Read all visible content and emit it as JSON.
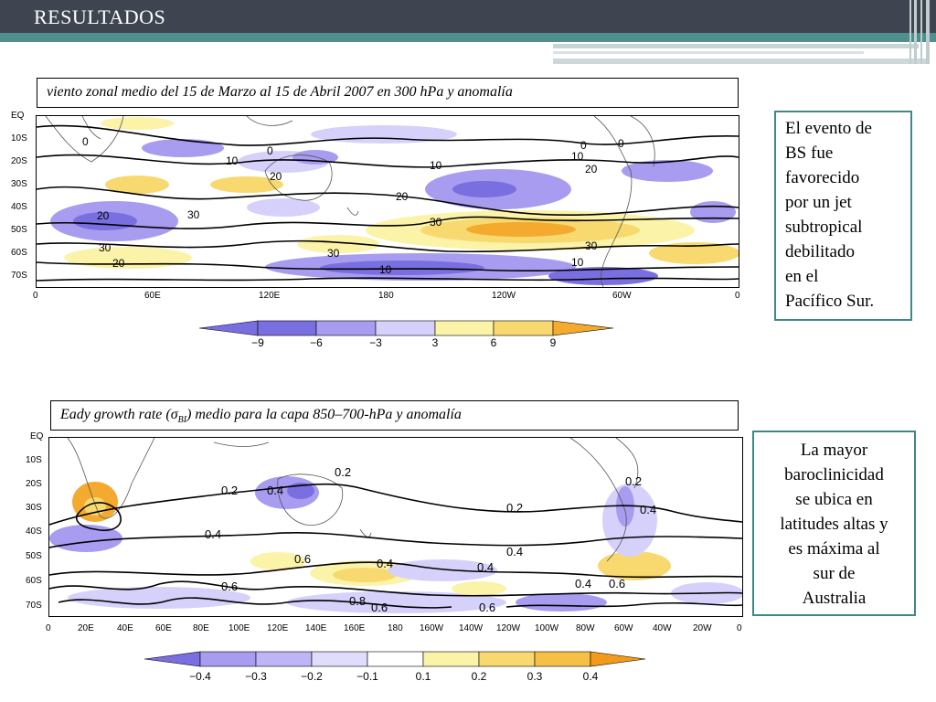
{
  "header": {
    "title": "RESULTADOS"
  },
  "panel_top": {
    "caption": "viento zonal medio del 15 de Marzo al 15 de Abril 2007 en 300 hPa y anomalía",
    "lat_labels": [
      "EQ",
      "10S",
      "20S",
      "30S",
      "40S",
      "50S",
      "60S",
      "70S"
    ],
    "lon_labels": [
      "0",
      "60E",
      "120E",
      "180",
      "120W",
      "60W",
      "0"
    ],
    "contour_labels": [
      "0",
      "0",
      "0",
      "0",
      "10",
      "10",
      "10",
      "10",
      "20",
      "20",
      "20",
      "20",
      "20",
      "30",
      "30",
      "30",
      "30",
      "30",
      "10"
    ],
    "colorbar_labels": [
      "−9",
      "−6",
      "−3",
      "3",
      "6",
      "9"
    ]
  },
  "panel_bottom": {
    "caption_prefix": "Eady growth rate (",
    "caption_sigma": "σ",
    "caption_sub": "BI",
    "caption_suffix": ")  medio para la capa 850–700-hPa y anomalía",
    "lat_labels": [
      "EQ",
      "10S",
      "20S",
      "30S",
      "40S",
      "50S",
      "60S",
      "70S"
    ],
    "lon_labels": [
      "0",
      "20E",
      "40E",
      "60E",
      "80E",
      "100E",
      "120E",
      "140E",
      "160E",
      "180",
      "160W",
      "140W",
      "120W",
      "100W",
      "80W",
      "60W",
      "40W",
      "20W",
      "0"
    ],
    "contour_labels": [
      "0.2",
      "0.2",
      "0.2",
      "0.2",
      "0.4",
      "0.4",
      "0.4",
      "0.4",
      "0.4",
      "0.4",
      "0.4",
      "0.6",
      "0.6",
      "0.6",
      "0.6",
      "0.6",
      "0.8"
    ],
    "colorbar_labels": [
      "−0.4",
      "−0.3",
      "−0.2",
      "−0.1",
      "0.1",
      "0.2",
      "0.3",
      "0.4"
    ]
  },
  "side_top": {
    "lines": [
      "El evento de",
      "BS fue",
      "favorecido",
      "por un jet",
      "subtropical",
      "debilitado",
      "en el",
      "Pacífico Sur."
    ]
  },
  "side_bottom": {
    "lines": [
      "La mayor",
      "baroclinicidad",
      "se  ubica en",
      "latitudes altas y",
      "es máxima al",
      "sur de",
      "Australia"
    ]
  },
  "colors": {
    "header_bg": "#3e4450",
    "teal": "#4f8f8e",
    "neg_dark": "#7a6fe0",
    "neg_mid": "#a79cf0",
    "neg_light": "#d6d1fb",
    "pos_light": "#fbf3a8",
    "pos_mid": "#f7d970",
    "pos_dark": "#f4aa2e"
  }
}
